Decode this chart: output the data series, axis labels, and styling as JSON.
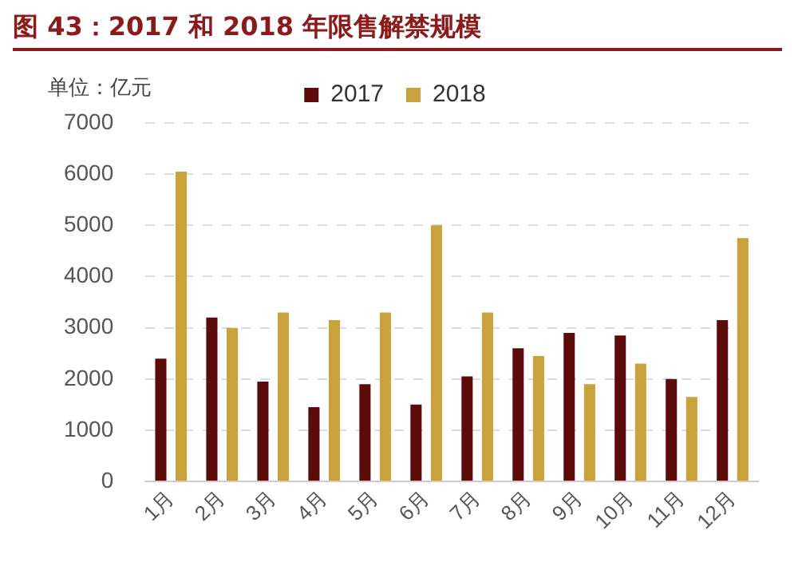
{
  "chart_data": {
    "type": "bar",
    "title": "图 43：2017 和 2018 年限售解禁规模",
    "ylabel": "单位：亿元",
    "categories": [
      "1月",
      "2月",
      "3月",
      "4月",
      "5月",
      "6月",
      "7月",
      "8月",
      "9月",
      "10月",
      "11月",
      "12月"
    ],
    "series": [
      {
        "name": "2017",
        "color": "#5c0a0a",
        "values": [
          2400,
          3200,
          1950,
          1450,
          1900,
          1500,
          2050,
          2600,
          2900,
          2850,
          2000,
          3150
        ]
      },
      {
        "name": "2018",
        "color": "#c9a23c",
        "values": [
          6050,
          3000,
          3300,
          3150,
          3300,
          5000,
          3300,
          2450,
          1900,
          2300,
          1650,
          4750
        ]
      }
    ],
    "ylim": [
      0,
      7000
    ],
    "yticks": [
      0,
      1000,
      2000,
      3000,
      4000,
      5000,
      6000,
      7000
    ],
    "grid": "y",
    "legend": "top"
  }
}
